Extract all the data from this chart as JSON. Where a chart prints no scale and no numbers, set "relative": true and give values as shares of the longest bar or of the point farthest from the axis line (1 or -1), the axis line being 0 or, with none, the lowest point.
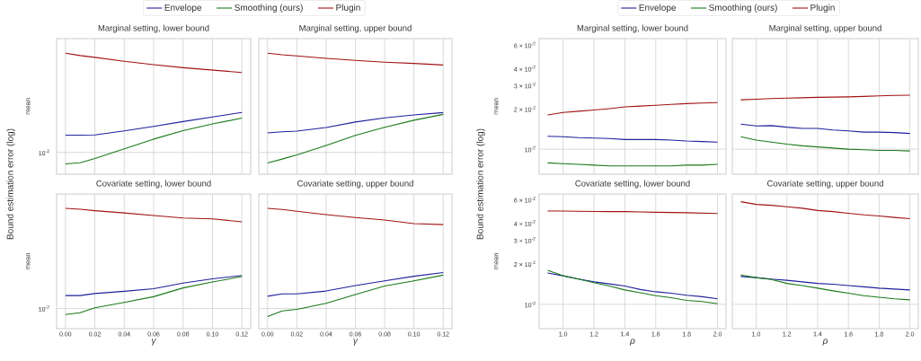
{
  "chart_data": [
    {
      "type": "line",
      "title": "Marginal setting, lower bound",
      "ylabel": "mean",
      "annotations": [
        "Bound estimation error (log)",
        "10$^{-2}$"
      ],
      "relative": true,
      "legend": "top",
      "grid": "x",
      "tick_labels": false,
      "x": [
        0,
        0.01,
        0.02,
        0.04,
        0.06,
        0.08,
        0.1,
        0.12
      ],
      "xlim": [
        -0.006,
        0.126
      ],
      "xticks": [
        {
          "value": 0,
          "label": null
        },
        {
          "value": 0.02,
          "label": null
        },
        {
          "value": 0.04,
          "label": null
        },
        {
          "value": 0.06,
          "label": null
        },
        {
          "value": 0.08,
          "label": null
        },
        {
          "value": 0.1,
          "label": null
        },
        {
          "value": 0.12,
          "label": null
        }
      ],
      "ref_lines": [
        {
          "axis": "y",
          "value": 0.18
        }
      ],
      "series": [
        {
          "name": "Envelope",
          "color": "#1f1f9c",
          "values": [
            0.323,
            0.323,
            0.325,
            0.358,
            0.395,
            0.435,
            0.473,
            0.51
          ]
        },
        {
          "name": "Smoothing (ours)",
          "color": "#1a7a1a",
          "values": [
            0.085,
            0.095,
            0.13,
            0.21,
            0.29,
            0.36,
            0.415,
            0.463
          ]
        },
        {
          "name": "Plugin",
          "color": "#a11212",
          "values": [
            1,
            0.98,
            0.965,
            0.933,
            0.905,
            0.88,
            0.86,
            0.84
          ]
        }
      ]
    },
    {
      "type": "line",
      "title": "Marginal setting, upper bound",
      "relative": true,
      "grid": "x",
      "tick_labels": false,
      "x": [
        0,
        0.01,
        0.02,
        0.04,
        0.06,
        0.08,
        0.1,
        0.12
      ],
      "xlim": [
        -0.006,
        0.126
      ],
      "xticks": [
        {
          "value": 0,
          "label": null
        },
        {
          "value": 0.02,
          "label": null
        },
        {
          "value": 0.04,
          "label": null
        },
        {
          "value": 0.06,
          "label": null
        },
        {
          "value": 0.08,
          "label": null
        },
        {
          "value": 0.1,
          "label": null
        },
        {
          "value": 0.12,
          "label": null
        }
      ],
      "ref_lines": [
        {
          "axis": "y",
          "value": 0.18
        }
      ],
      "series": [
        {
          "color": "#1f1f9c",
          "values": [
            0.341,
            0.351,
            0.356,
            0.386,
            0.431,
            0.466,
            0.489,
            0.509
          ]
        },
        {
          "color": "#1a7a1a",
          "values": [
            0.093,
            0.125,
            0.16,
            0.238,
            0.321,
            0.388,
            0.446,
            0.494
          ]
        },
        {
          "color": "#a11212",
          "values": [
            1,
            0.987,
            0.977,
            0.957,
            0.94,
            0.925,
            0.915,
            0.902
          ]
        }
      ]
    },
    {
      "type": "line",
      "title": "Covariate setting, lower bound",
      "ylabel": "mean",
      "xlabel": "γ",
      "annotations": [
        "10$^{-2}$"
      ],
      "relative": true,
      "grid": "x",
      "tick_labels": "x",
      "x": [
        0,
        0.01,
        0.02,
        0.04,
        0.06,
        0.08,
        0.1,
        0.12
      ],
      "xlim": [
        -0.006,
        0.126
      ],
      "xticks": [
        {
          "value": 0,
          "label": "0.00"
        },
        0.02,
        0.04,
        0.06,
        0.08,
        {
          "value": 0.1,
          "label": "0.10"
        },
        0.12
      ],
      "ref_lines": [
        {
          "axis": "y",
          "value": 0.167
        }
      ],
      "series": [
        {
          "color": "#1f1f9c",
          "values": [
            0.275,
            0.275,
            0.292,
            0.311,
            0.332,
            0.379,
            0.414,
            0.442
          ]
        },
        {
          "color": "#1a7a1a",
          "values": [
            0.118,
            0.132,
            0.174,
            0.219,
            0.266,
            0.339,
            0.388,
            0.433
          ]
        },
        {
          "color": "#a11212",
          "values": [
            1,
            0.993,
            0.981,
            0.962,
            0.941,
            0.92,
            0.913,
            0.889
          ]
        }
      ]
    },
    {
      "type": "line",
      "title": "Covariate setting, upper bound",
      "xlabel": "γ",
      "relative": true,
      "grid": "x",
      "tick_labels": "x",
      "x": [
        0,
        0.01,
        0.02,
        0.04,
        0.06,
        0.08,
        0.1,
        0.12
      ],
      "xlim": [
        -0.006,
        0.126
      ],
      "xticks": [
        {
          "value": 0,
          "label": "0.00"
        },
        0.02,
        0.04,
        0.06,
        0.08,
        {
          "value": 0.1,
          "label": "0.10"
        },
        0.12
      ],
      "ref_lines": [
        {
          "axis": "y",
          "value": 0.168
        }
      ],
      "series": [
        {
          "color": "#1f1f9c",
          "values": [
            0.27,
            0.289,
            0.289,
            0.313,
            0.358,
            0.398,
            0.436,
            0.467
          ]
        },
        {
          "color": "#1a7a1a",
          "values": [
            0.1,
            0.147,
            0.161,
            0.211,
            0.284,
            0.355,
            0.398,
            0.445
          ]
        },
        {
          "color": "#a11212",
          "values": [
            1,
            0.991,
            0.976,
            0.948,
            0.924,
            0.903,
            0.874,
            0.865
          ]
        }
      ]
    },
    {
      "type": "line",
      "title": "Marginal setting, lower bound",
      "ylabel": "mean",
      "annotations": [
        "Bound estimation error (log)"
      ],
      "log": "y",
      "legend": "top",
      "grid": "x",
      "tick_labels": "y",
      "x": [
        0.9,
        1.0,
        1.1,
        1.2,
        1.3,
        1.4,
        1.5,
        1.6,
        1.7,
        1.8,
        1.9,
        2.0
      ],
      "xlim": [
        0.845,
        2.055
      ],
      "xticks": [
        {
          "value": 1,
          "label": null
        },
        {
          "value": 1.2,
          "label": null
        },
        {
          "value": 1.4,
          "label": null
        },
        {
          "value": 1.6,
          "label": null
        },
        {
          "value": 1.8,
          "label": null
        },
        {
          "value": 2,
          "label": null
        }
      ],
      "ylim": [
        0.0065,
        0.067
      ],
      "yticks": [
        {
          "value": 0.01,
          "label": "10$^{-2}$"
        },
        {
          "value": 0.02,
          "label": "2 × 10$^{-2}$"
        },
        {
          "value": 0.03,
          "label": "3 × 10$^{-2}$"
        },
        {
          "value": 0.04,
          "label": "4 × 10$^{-2}$"
        },
        {
          "value": 0.06,
          "label": "6 × 10$^{-2}$"
        }
      ],
      "ref_lines": [
        {
          "axis": "y",
          "value": 0.01
        }
      ],
      "series": [
        {
          "name": "Envelope",
          "color": "#1f1f9c",
          "values": [
            0.0125,
            0.0124,
            0.0122,
            0.0121,
            0.012,
            0.0118,
            0.0118,
            0.0118,
            0.0117,
            0.0115,
            0.0114,
            0.0113
          ]
        },
        {
          "name": "Smoothing (ours)",
          "color": "#1a7a1a",
          "values": [
            0.0079,
            0.0078,
            0.0077,
            0.0076,
            0.0075,
            0.0075,
            0.0075,
            0.0075,
            0.0075,
            0.0076,
            0.0076,
            0.0077
          ]
        },
        {
          "name": "Plugin",
          "color": "#a11212",
          "values": [
            0.018,
            0.0188,
            0.0192,
            0.0196,
            0.0201,
            0.0207,
            0.021,
            0.0213,
            0.0216,
            0.0219,
            0.0221,
            0.0223
          ]
        }
      ]
    },
    {
      "type": "line",
      "title": "Marginal setting, upper bound",
      "log": "y",
      "grid": "x",
      "tick_labels": false,
      "x": [
        0.9,
        1.0,
        1.1,
        1.2,
        1.3,
        1.4,
        1.5,
        1.6,
        1.7,
        1.8,
        1.9,
        2.0
      ],
      "xlim": [
        0.845,
        2.055
      ],
      "xticks": [
        {
          "value": 1,
          "label": null
        },
        {
          "value": 1.2,
          "label": null
        },
        {
          "value": 1.4,
          "label": null
        },
        {
          "value": 1.6,
          "label": null
        },
        {
          "value": 1.8,
          "label": null
        },
        {
          "value": 2,
          "label": null
        }
      ],
      "ylim": [
        0.0065,
        0.067
      ],
      "yticks": [
        {
          "value": 0.01,
          "label": null
        },
        {
          "value": 0.02,
          "label": null
        },
        {
          "value": 0.03,
          "label": null
        },
        {
          "value": 0.04,
          "label": null
        },
        {
          "value": 0.06,
          "label": null
        }
      ],
      "ref_lines": [
        {
          "axis": "y",
          "value": 0.01
        }
      ],
      "series": [
        {
          "color": "#1f1f9c",
          "values": [
            0.0154,
            0.0149,
            0.015,
            0.0146,
            0.0143,
            0.0143,
            0.0139,
            0.0137,
            0.0134,
            0.0134,
            0.0133,
            0.0131
          ]
        },
        {
          "color": "#1a7a1a",
          "values": [
            0.0124,
            0.0117,
            0.0113,
            0.0109,
            0.0106,
            0.0104,
            0.0102,
            0.01,
            0.0099,
            0.0098,
            0.0098,
            0.0097
          ]
        },
        {
          "color": "#a11212",
          "values": [
            0.0234,
            0.0236,
            0.0239,
            0.0241,
            0.0242,
            0.0244,
            0.0245,
            0.0246,
            0.0248,
            0.025,
            0.0252,
            0.0253
          ]
        }
      ]
    },
    {
      "type": "line",
      "title": "Covariate setting, lower bound",
      "ylabel": "mean",
      "xlabel": "ρ",
      "log": "y",
      "grid": "x",
      "x": [
        0.9,
        1.0,
        1.1,
        1.2,
        1.3,
        1.4,
        1.5,
        1.6,
        1.7,
        1.8,
        1.9,
        2.0
      ],
      "xlim": [
        0.845,
        2.055
      ],
      "xticks": [
        {
          "value": 1,
          "label": "1.0"
        },
        1.2,
        1.4,
        1.6,
        1.8,
        {
          "value": 2,
          "label": "2.0"
        }
      ],
      "ylim": [
        0.0066,
        0.066
      ],
      "yticks": [
        {
          "value": 0.01,
          "label": "10$^{-2}$"
        },
        {
          "value": 0.02,
          "label": "2 × 10$^{-2}$"
        },
        {
          "value": 0.03,
          "label": "3 × 10$^{-2}$"
        },
        {
          "value": 0.04,
          "label": "4 × 10$^{-2}$"
        },
        {
          "value": 0.06,
          "label": "6 × 10$^{-2}$"
        }
      ],
      "ref_lines": [
        {
          "axis": "y",
          "value": 0.01
        }
      ],
      "series": [
        {
          "color": "#1f1f9c",
          "values": [
            0.0171,
            0.0163,
            0.0154,
            0.0147,
            0.0142,
            0.0137,
            0.0129,
            0.0124,
            0.0121,
            0.0117,
            0.0114,
            0.011
          ]
        },
        {
          "color": "#1a7a1a",
          "values": [
            0.0179,
            0.0163,
            0.0154,
            0.0145,
            0.0137,
            0.0128,
            0.0122,
            0.0116,
            0.0112,
            0.0107,
            0.0105,
            0.0101
          ]
        },
        {
          "color": "#a11212",
          "values": [
            0.0493,
            0.0493,
            0.0491,
            0.0489,
            0.0488,
            0.0488,
            0.0485,
            0.0483,
            0.0481,
            0.0479,
            0.0476,
            0.0473
          ]
        }
      ]
    },
    {
      "type": "line",
      "title": "Covariate setting, upper bound",
      "xlabel": "ρ",
      "log": "y",
      "grid": "x",
      "tick_labels": "x",
      "x": [
        0.9,
        1.0,
        1.1,
        1.2,
        1.3,
        1.4,
        1.5,
        1.6,
        1.7,
        1.8,
        1.9,
        2.0
      ],
      "xlim": [
        0.845,
        2.055
      ],
      "xticks": [
        {
          "value": 1,
          "label": "1.0"
        },
        1.2,
        1.4,
        1.6,
        1.8,
        {
          "value": 2,
          "label": "2.0"
        }
      ],
      "ylim": [
        0.0066,
        0.066
      ],
      "yticks": [
        {
          "value": 0.01,
          "label": null
        },
        {
          "value": 0.02,
          "label": null
        },
        {
          "value": 0.03,
          "label": null
        },
        {
          "value": 0.04,
          "label": null
        },
        {
          "value": 0.06,
          "label": null
        }
      ],
      "ref_lines": [
        {
          "axis": "y",
          "value": 0.01
        }
      ],
      "series": [
        {
          "color": "#1f1f9c",
          "values": [
            0.0161,
            0.0158,
            0.0154,
            0.0151,
            0.0147,
            0.0143,
            0.0141,
            0.0138,
            0.0135,
            0.0132,
            0.013,
            0.0128
          ]
        },
        {
          "color": "#1a7a1a",
          "values": [
            0.0165,
            0.0158,
            0.0153,
            0.0143,
            0.0138,
            0.0132,
            0.0126,
            0.0121,
            0.0116,
            0.0113,
            0.011,
            0.0108
          ]
        },
        {
          "color": "#a11212",
          "values": [
            0.0578,
            0.0552,
            0.0544,
            0.053,
            0.0517,
            0.0498,
            0.0488,
            0.0474,
            0.0462,
            0.0453,
            0.0442,
            0.0433
          ]
        }
      ]
    }
  ]
}
